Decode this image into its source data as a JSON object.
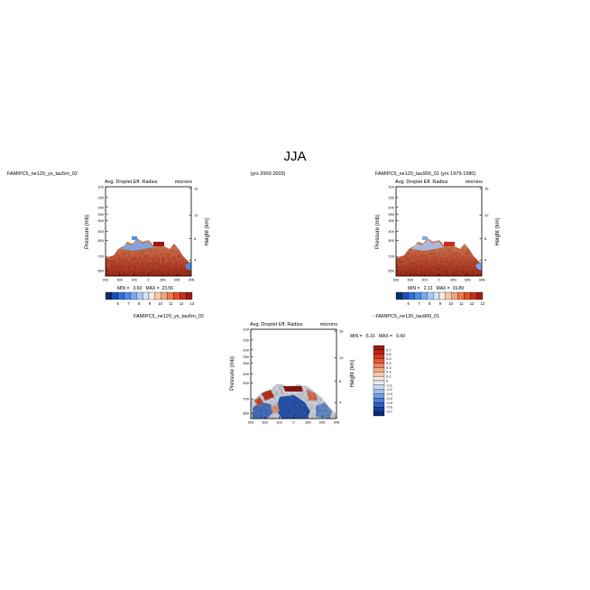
{
  "figure": {
    "title": "JJA",
    "left_case": "FAMIPC5_ne120_ys_tau5m_02",
    "years_left": "(yrs 2000-2003)",
    "right_case": "FAMIPC5_ne120_tau900_01 (yrs 1979-1980)"
  },
  "chart_data": [
    {
      "type": "heatmap",
      "name": "panel-1",
      "title": "Avg. Droplet Eff. Radius",
      "units": "microns",
      "ylabel": "Pressure (mb)",
      "y2label": "Height (km)",
      "xticks": [
        "90S",
        "60S",
        "30S",
        "0",
        "30N",
        "60N",
        "90N"
      ],
      "yticks": [
        "100",
        "150",
        "200",
        "250",
        "300",
        "400",
        "500",
        "700",
        "850"
      ],
      "y2ticks": [
        "16",
        "12",
        "8",
        "4"
      ],
      "stats": "MIN =   3.60   MAX =  23.56",
      "colorbar": {
        "labels": [
          "6",
          "7",
          "8",
          "9",
          "10",
          "11",
          "12",
          "13"
        ]
      }
    },
    {
      "type": "heatmap",
      "name": "panel-2",
      "title": "Avg. Droplet Eff. Radius",
      "units": "microns",
      "ylabel": "Pressure (mb)",
      "y2label": "Height (km)",
      "xticks": [
        "90S",
        "60S",
        "30S",
        "0",
        "30N",
        "60N",
        "90N"
      ],
      "yticks": [
        "100",
        "150",
        "200",
        "250",
        "300",
        "400",
        "500",
        "700",
        "850"
      ],
      "y2ticks": [
        "16",
        "12",
        "8",
        "4"
      ],
      "stats": "MIN =   2.13   MAX =  19.89",
      "colorbar": {
        "labels": [
          "6",
          "7",
          "8",
          "9",
          "10",
          "11",
          "12",
          "13"
        ]
      }
    },
    {
      "type": "heatmap",
      "name": "panel-diff",
      "title": "Avg. Droplet Eff. Radius",
      "units": "microns",
      "case_label": "FAMIPC5_ne120_ys_tau5m_02",
      "diff_label": "- FAMIPC5_ne120_tau900_01",
      "ylabel": "Pressure (mb)",
      "y2label": "Height (km)",
      "xticks": [
        "90S",
        "60S",
        "30S",
        "0",
        "30N",
        "60N",
        "90N"
      ],
      "yticks": [
        "100",
        "150",
        "200",
        "250",
        "300",
        "400",
        "500",
        "700",
        "850"
      ],
      "y2ticks": [
        "16",
        "12",
        "8",
        "4"
      ],
      "stats": "MIN =  -5.16   MAX =   9.43",
      "colorbar": {
        "labels": [
          "0.7",
          "0.6",
          "0.5",
          "0.4",
          "0.3",
          "0.2",
          "0.1",
          "0",
          "-0.1",
          "-0.2",
          "-0.3",
          "-0.4",
          "-0.5",
          "-0.6",
          "-0.7"
        ]
      }
    }
  ],
  "colors": {
    "colorbar_abs": [
      "#08306b",
      "#1f4fb5",
      "#2f6fd8",
      "#4d8de6",
      "#79aaf0",
      "#a7c7f5",
      "#d3e2f8",
      "#fbe9dd",
      "#f8c9a8",
      "#f4a47a",
      "#ef7b4f",
      "#e0502d",
      "#c4301c",
      "#9c1a12"
    ],
    "colorbar_diff": [
      "#9c1a12",
      "#b82418",
      "#d23a22",
      "#e35a34",
      "#ee8058",
      "#f4a783",
      "#f8cbb2",
      "#fbe6da",
      "#e8eef8",
      "#c6d8f3",
      "#9fbcec",
      "#769de2",
      "#4f7fd6",
      "#2e5fc4",
      "#1a3f9e",
      "#0c2a78"
    ]
  }
}
